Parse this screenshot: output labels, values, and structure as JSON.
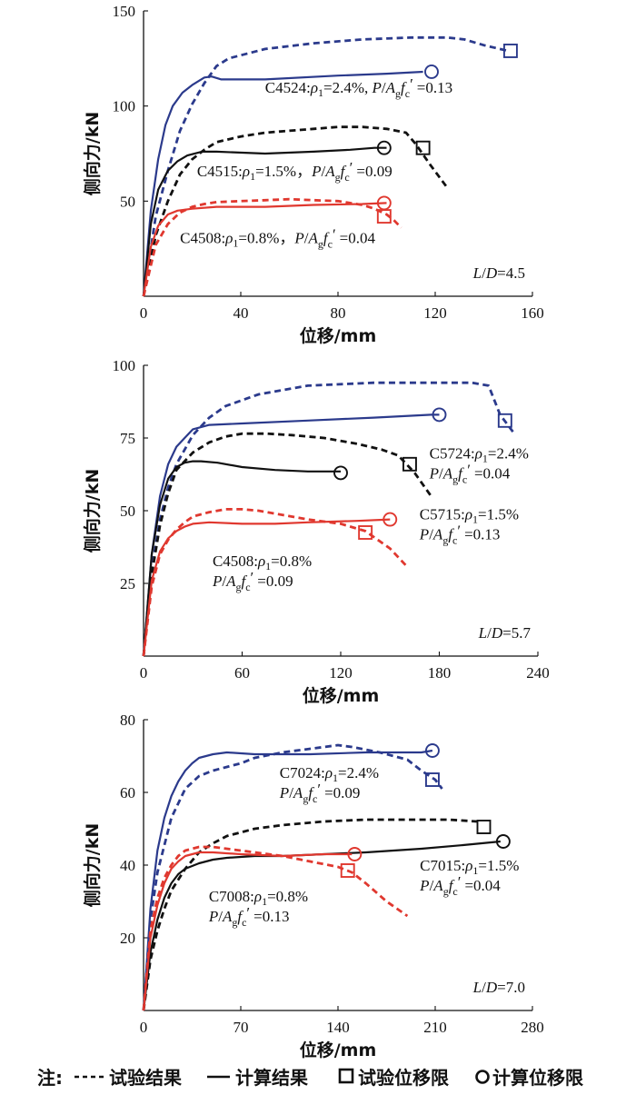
{
  "legend": {
    "prefix": "注:",
    "test_label": "试验结果",
    "calc_label": "计算结果",
    "test_limit_label": "试验位移限",
    "calc_limit_label": "计算位移限"
  },
  "colors": {
    "blue": "#2b3a8c",
    "black": "#111111",
    "red": "#e0382f"
  },
  "chart_data": [
    {
      "type": "line",
      "id": "p1",
      "xlabel": "位移/mm",
      "ylabel": "侧向力/kN",
      "xlim": [
        0,
        160
      ],
      "ylim": [
        0,
        150
      ],
      "xticks": [
        0,
        40,
        80,
        120,
        160
      ],
      "yticks": [
        50,
        100,
        150
      ],
      "ld_label": "L/D=4.5",
      "series": [
        {
          "name": "C4524 计算",
          "color": "blue",
          "dash": false,
          "lw": 2.2,
          "x": [
            0,
            3,
            6,
            9,
            12,
            16,
            20,
            25,
            28,
            32,
            50,
            80,
            100,
            115
          ],
          "y": [
            0,
            45,
            72,
            90,
            100,
            107,
            111,
            115,
            115.5,
            114,
            114,
            116,
            117,
            118
          ],
          "marker": {
            "type": "circle",
            "x": 118.5,
            "y": 118
          }
        },
        {
          "name": "C4524 试验",
          "color": "blue",
          "dash": true,
          "lw": 2.8,
          "x": [
            0,
            5,
            10,
            15,
            20,
            25,
            30,
            35,
            50,
            70,
            90,
            110,
            125,
            132,
            140,
            150
          ],
          "y": [
            0,
            42,
            66,
            87,
            101,
            112,
            121,
            125,
            130,
            133,
            135,
            136,
            136,
            135,
            132,
            129
          ],
          "marker": {
            "type": "square",
            "x": 151,
            "y": 129
          }
        },
        {
          "name": "C4515 计算",
          "color": "black",
          "dash": false,
          "lw": 2.2,
          "x": [
            0,
            3,
            6,
            10,
            14,
            18,
            24,
            30,
            50,
            70,
            85,
            95,
            100
          ],
          "y": [
            0,
            38,
            56,
            66,
            71,
            74,
            76,
            76,
            75,
            76,
            77,
            78,
            78
          ],
          "marker": {
            "type": "circle",
            "x": 99,
            "y": 78
          }
        },
        {
          "name": "C4515 试验",
          "color": "black",
          "dash": true,
          "lw": 2.8,
          "x": [
            0,
            5,
            10,
            15,
            20,
            25,
            30,
            40,
            50,
            60,
            70,
            80,
            90,
            100,
            108,
            112,
            118,
            125
          ],
          "y": [
            0,
            32,
            50,
            64,
            72,
            77,
            81,
            84,
            86,
            87,
            88,
            89,
            89,
            88,
            86,
            80,
            69,
            57
          ],
          "marker": {
            "type": "square",
            "x": 115,
            "y": 78
          }
        },
        {
          "name": "C4508 计算",
          "color": "red",
          "dash": false,
          "lw": 2.2,
          "x": [
            0,
            3,
            6,
            10,
            14,
            20,
            30,
            50,
            70,
            90,
            100
          ],
          "y": [
            0,
            26,
            37,
            43,
            45,
            46,
            47,
            47,
            48,
            48.5,
            49
          ],
          "marker": {
            "type": "circle",
            "x": 99,
            "y": 49
          }
        },
        {
          "name": "C4508 试验",
          "color": "red",
          "dash": true,
          "lw": 2.8,
          "x": [
            0,
            5,
            10,
            15,
            20,
            25,
            30,
            40,
            50,
            60,
            70,
            80,
            90,
            95,
            100,
            103,
            106
          ],
          "y": [
            0,
            27,
            38,
            44,
            47,
            48.5,
            49.5,
            50,
            50.5,
            51,
            50.5,
            50,
            48,
            46,
            43,
            40,
            36
          ],
          "marker": {
            "type": "square",
            "x": 99,
            "y": 42
          }
        }
      ],
      "annotations": [
        {
          "label": "C4524",
          "rho": "=2.4%",
          "ratio": "=0.13",
          "x": 50,
          "y": 107
        },
        {
          "label": "C4515",
          "rho": "=1.5%",
          "ratio": "=0.09",
          "x": 22,
          "y": 63
        },
        {
          "label": "C4508",
          "rho": "=0.8%",
          "ratio": "=0.04",
          "x": 15,
          "y": 28
        }
      ]
    },
    {
      "type": "line",
      "id": "p2",
      "xlabel": "位移/mm",
      "ylabel": "侧向力/kN",
      "xlim": [
        0,
        240
      ],
      "ylim": [
        0,
        100
      ],
      "xticks": [
        0,
        60,
        120,
        180,
        240
      ],
      "yticks": [
        25,
        50,
        75,
        100
      ],
      "ld_label": "L/D=5.7",
      "series": [
        {
          "name": "C5724 计算",
          "color": "blue",
          "dash": false,
          "lw": 2.2,
          "x": [
            0,
            5,
            10,
            15,
            20,
            25,
            30,
            40,
            60,
            100,
            140,
            175,
            180
          ],
          "y": [
            0,
            35,
            55,
            66,
            72,
            75,
            78,
            79.5,
            80,
            81,
            82,
            83,
            83
          ],
          "marker": {
            "type": "circle",
            "x": 180,
            "y": 83
          }
        },
        {
          "name": "C5724 试验",
          "color": "blue",
          "dash": true,
          "lw": 2.8,
          "x": [
            0,
            5,
            10,
            15,
            20,
            30,
            40,
            50,
            70,
            100,
            140,
            180,
            200,
            210,
            217,
            225
          ],
          "y": [
            0,
            30,
            47,
            58,
            66,
            76,
            82,
            86,
            90,
            93,
            94,
            94,
            94,
            93,
            83,
            77
          ],
          "marker": {
            "type": "square",
            "x": 220,
            "y": 81
          }
        },
        {
          "name": "C5715 计算",
          "color": "black",
          "dash": false,
          "lw": 2.2,
          "x": [
            0,
            5,
            10,
            15,
            20,
            25,
            30,
            35,
            45,
            60,
            80,
            100,
            120
          ],
          "y": [
            0,
            35,
            52,
            61,
            65,
            66.5,
            67,
            67,
            66.5,
            65,
            64,
            63.5,
            63.5
          ],
          "marker": {
            "type": "circle",
            "x": 120,
            "y": 63
          }
        },
        {
          "name": "C5715 试验",
          "color": "black",
          "dash": true,
          "lw": 2.8,
          "x": [
            0,
            5,
            10,
            15,
            20,
            30,
            40,
            50,
            60,
            75,
            90,
            110,
            130,
            145,
            155,
            165,
            175
          ],
          "y": [
            0,
            28,
            45,
            56,
            64,
            70,
            73.5,
            75.5,
            76.5,
            76.5,
            76,
            75,
            73,
            71,
            69,
            63,
            55
          ],
          "marker": {
            "type": "square",
            "x": 162,
            "y": 66
          }
        },
        {
          "name": "C4508 计算",
          "color": "red",
          "dash": false,
          "lw": 2.2,
          "x": [
            0,
            5,
            10,
            15,
            20,
            25,
            30,
            40,
            60,
            80,
            100,
            130,
            150
          ],
          "y": [
            0,
            26,
            36,
            40.5,
            43,
            44.5,
            45.5,
            46,
            45.5,
            45.5,
            46,
            46.5,
            47
          ],
          "marker": {
            "type": "circle",
            "x": 150,
            "y": 47
          }
        },
        {
          "name": "C4508 试验",
          "color": "red",
          "dash": true,
          "lw": 2.8,
          "x": [
            0,
            5,
            10,
            15,
            20,
            25,
            30,
            40,
            50,
            60,
            70,
            80,
            100,
            120,
            135,
            150,
            160
          ],
          "y": [
            0,
            24,
            35,
            40,
            43.5,
            46,
            48,
            49.5,
            50.5,
            50.5,
            50,
            49,
            47,
            45.5,
            43,
            37,
            31
          ],
          "marker": {
            "type": "square",
            "x": 135,
            "y": 42.5
          }
        }
      ],
      "annotations": [
        {
          "label": "C5724",
          "rho": "=2.4%",
          "ratio": "=0.04",
          "x": 174,
          "y": 68
        },
        {
          "label": "C5715",
          "rho": "=1.5%",
          "ratio": "=0.13",
          "x": 168,
          "y": 47
        },
        {
          "label": "C4508",
          "rho": "=0.8%",
          "ratio": "=0.09",
          "x": 42,
          "y": 31
        }
      ]
    },
    {
      "type": "line",
      "id": "p3",
      "xlabel": "位移/mm",
      "ylabel": "侧向力/kN",
      "xlim": [
        0,
        280
      ],
      "ylim": [
        0,
        80
      ],
      "xticks": [
        0,
        70,
        140,
        210,
        280
      ],
      "yticks": [
        20,
        40,
        60,
        80
      ],
      "ld_label": "L/D=7.0",
      "series": [
        {
          "name": "C7024 计算",
          "color": "blue",
          "dash": false,
          "lw": 2.2,
          "x": [
            0,
            5,
            10,
            15,
            20,
            25,
            30,
            35,
            40,
            50,
            60,
            80,
            120,
            160,
            200,
            208
          ],
          "y": [
            0,
            28,
            44,
            53,
            59,
            63,
            66,
            68,
            69.5,
            70.5,
            71,
            70.5,
            70.5,
            71,
            71,
            71.5
          ],
          "marker": {
            "type": "circle",
            "x": 208,
            "y": 71.5
          }
        },
        {
          "name": "C7024 试验",
          "color": "blue",
          "dash": true,
          "lw": 2.8,
          "x": [
            0,
            5,
            10,
            20,
            30,
            40,
            50,
            60,
            70,
            80,
            100,
            120,
            140,
            150,
            170,
            190,
            200,
            210,
            215
          ],
          "y": [
            0,
            25,
            38,
            53,
            61,
            64.5,
            66,
            67,
            68,
            69.5,
            71,
            72,
            73,
            72.5,
            71,
            69,
            66,
            63.5,
            61
          ],
          "marker": {
            "type": "square",
            "x": 208,
            "y": 63.5
          }
        },
        {
          "name": "C7015 计算",
          "color": "black",
          "dash": false,
          "lw": 2.2,
          "x": [
            0,
            5,
            10,
            15,
            20,
            25,
            30,
            40,
            50,
            60,
            80,
            100,
            130,
            160,
            200,
            230,
            257
          ],
          "y": [
            0,
            16,
            25,
            31,
            35,
            37.5,
            39,
            40.5,
            41.5,
            42,
            42.5,
            42.5,
            43,
            43.5,
            44.5,
            45.5,
            46.5
          ],
          "marker": {
            "type": "circle",
            "x": 259,
            "y": 46.5
          }
        },
        {
          "name": "C7015 试验",
          "color": "black",
          "dash": true,
          "lw": 2.8,
          "x": [
            0,
            5,
            10,
            15,
            20,
            30,
            40,
            50,
            60,
            80,
            100,
            130,
            160,
            190,
            220,
            240
          ],
          "y": [
            0,
            14,
            22,
            28,
            33,
            39,
            43.5,
            46,
            48,
            50,
            51,
            52,
            52.5,
            52.5,
            52.5,
            52
          ],
          "marker": {
            "type": "square",
            "x": 245,
            "y": 50.5
          }
        },
        {
          "name": "C7008 计算",
          "color": "red",
          "dash": false,
          "lw": 2.2,
          "x": [
            0,
            5,
            10,
            15,
            20,
            25,
            30,
            40,
            50,
            70,
            100,
            130,
            150
          ],
          "y": [
            0,
            20,
            29,
            35,
            39,
            41,
            42.5,
            43.5,
            43.5,
            43,
            42.5,
            43,
            43
          ],
          "marker": {
            "type": "circle",
            "x": 152,
            "y": 43
          }
        },
        {
          "name": "C7008 试验",
          "color": "red",
          "dash": true,
          "lw": 2.8,
          "x": [
            0,
            5,
            10,
            15,
            20,
            25,
            30,
            40,
            50,
            60,
            80,
            100,
            120,
            140,
            150,
            160,
            175,
            190
          ],
          "y": [
            0,
            22,
            31,
            36.5,
            40,
            42.5,
            44,
            45,
            45,
            44.5,
            43.5,
            42.5,
            41,
            39.5,
            38,
            35,
            30,
            26
          ],
          "marker": {
            "type": "square",
            "x": 147,
            "y": 38.5
          }
        }
      ],
      "annotations": [
        {
          "label": "C7024",
          "rho": "=2.4%",
          "ratio": "=0.09",
          "x": 98,
          "y": 64
        },
        {
          "label": "C7015",
          "rho": "=1.5%",
          "ratio": "=0.04",
          "x": 199,
          "y": 38.5
        },
        {
          "label": "C7008",
          "rho": "=0.8%",
          "ratio": "=0.13",
          "x": 47,
          "y": 30
        }
      ]
    }
  ]
}
